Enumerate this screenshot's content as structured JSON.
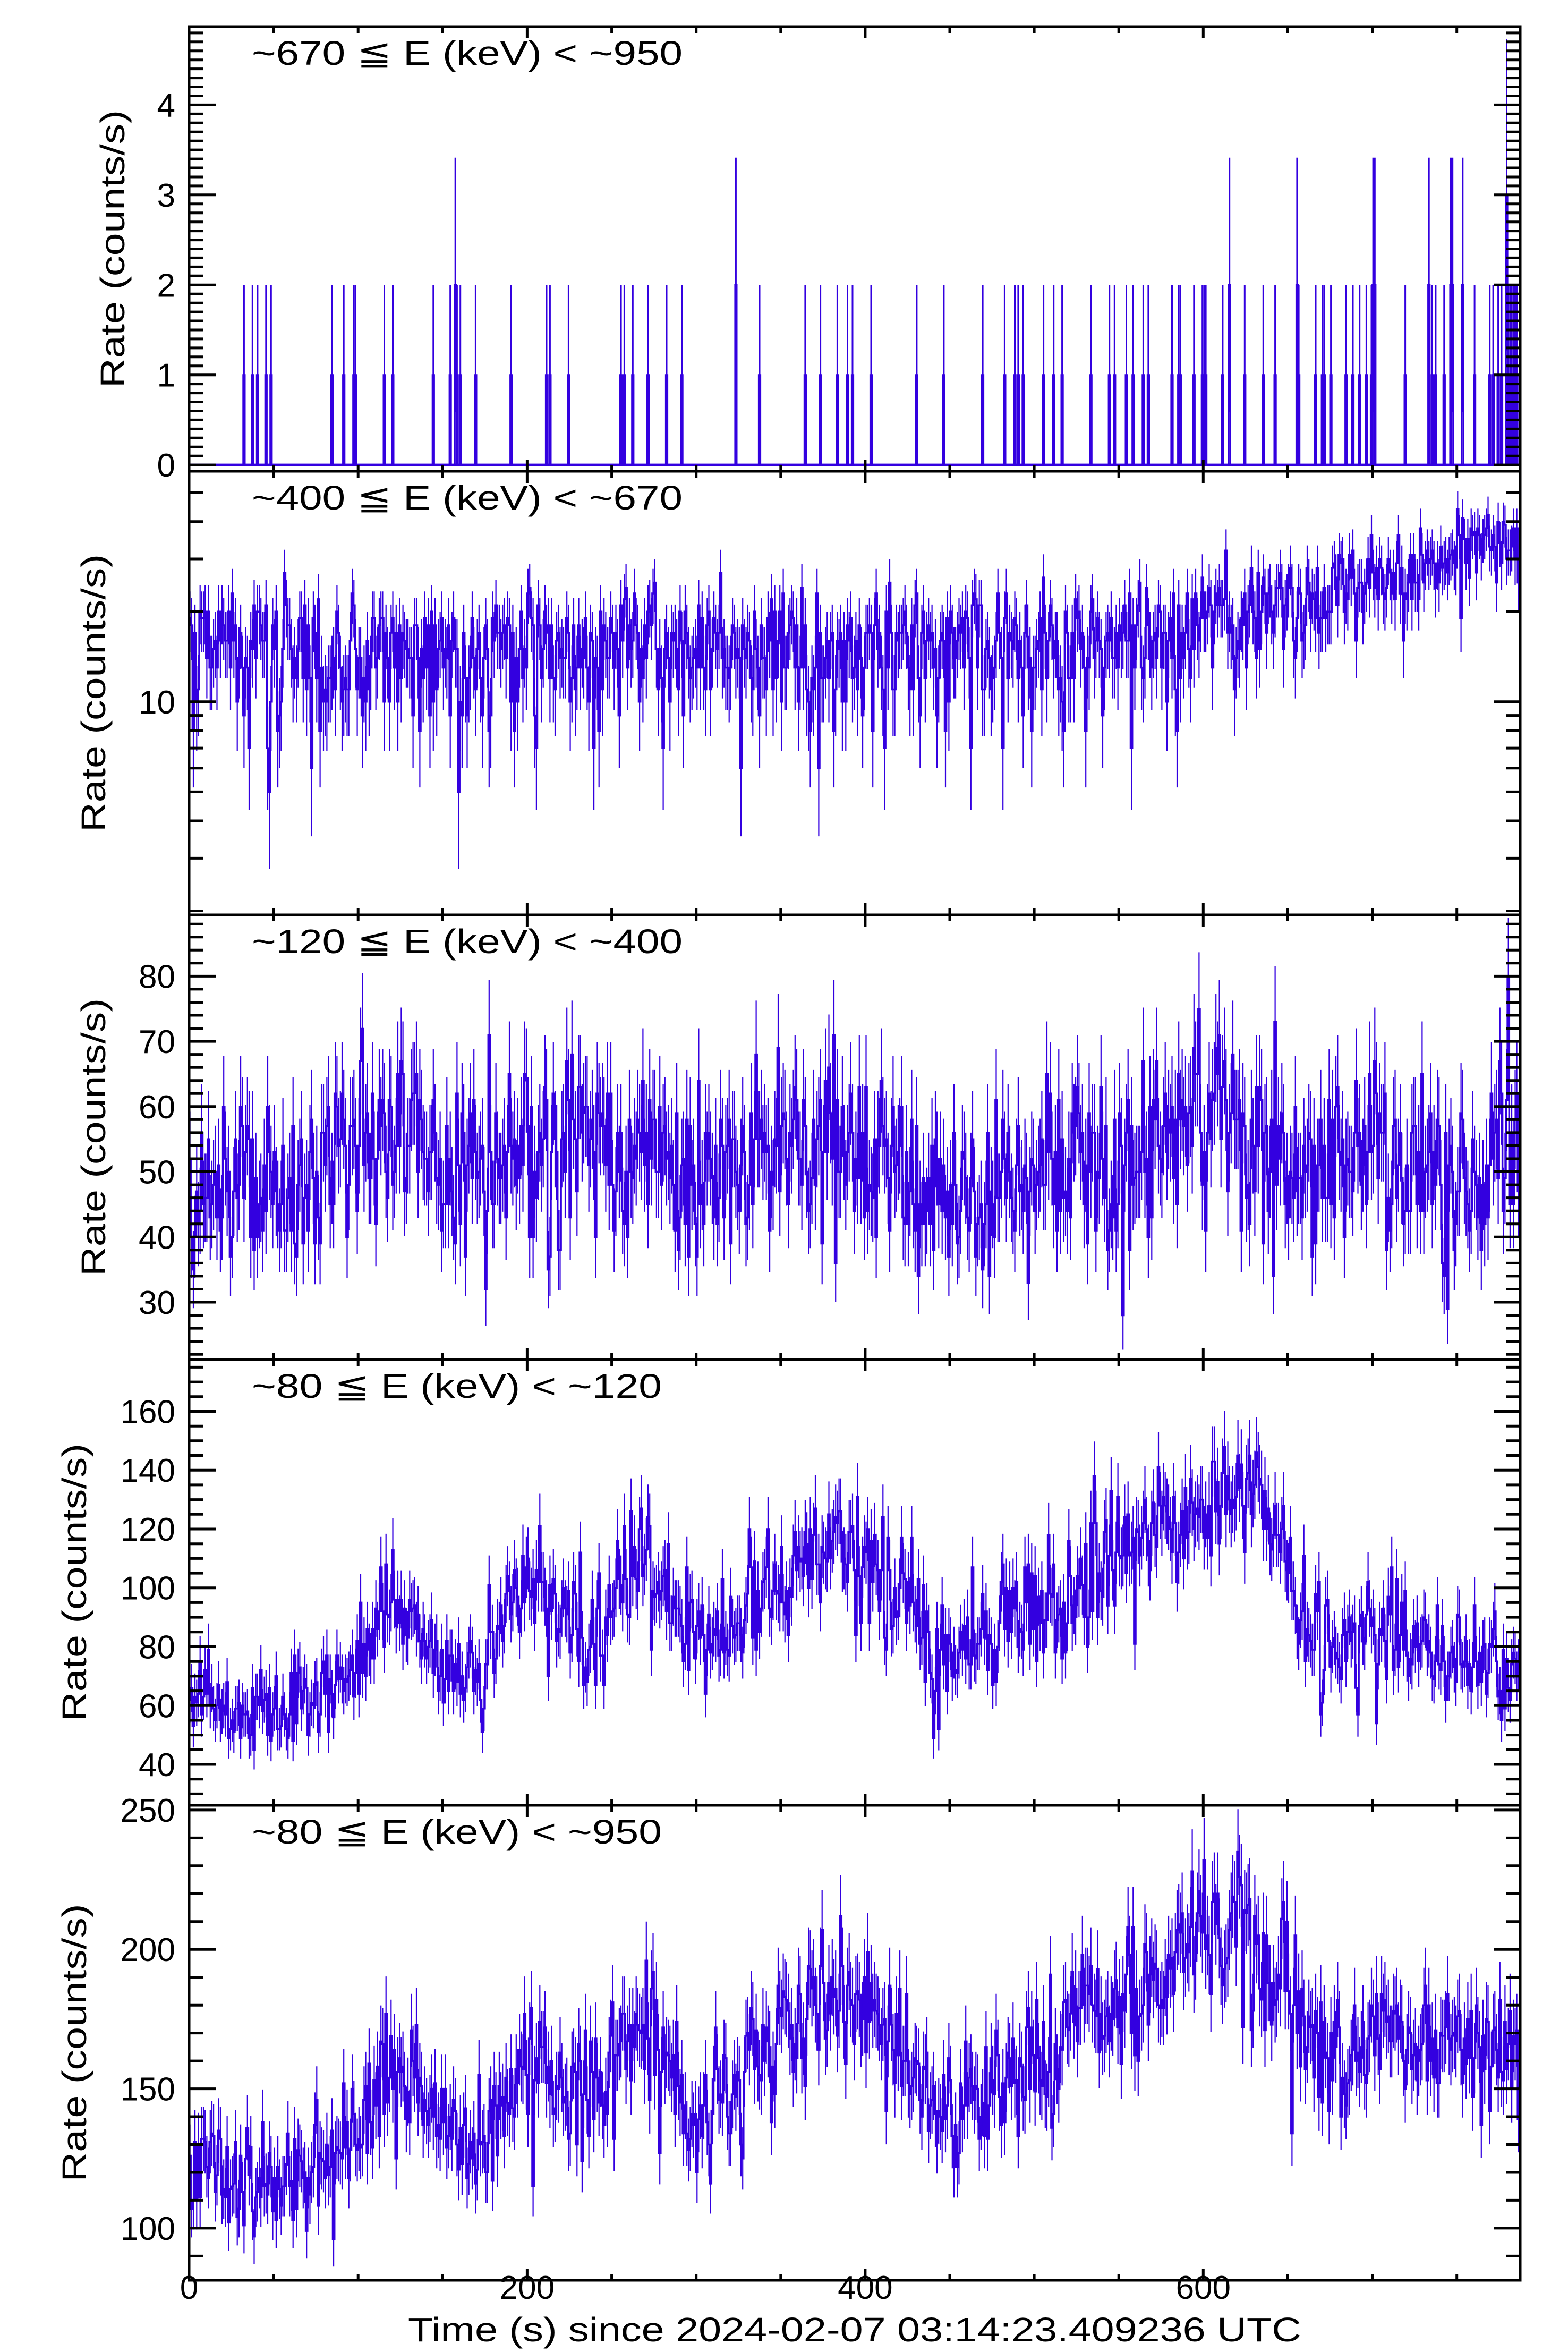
{
  "chart_data": {
    "type": "line",
    "title": "",
    "x_label": "Time (s) since 2024-02-07 03:14:23.409236 UTC",
    "xlim": [
      0,
      787.5
    ],
    "x_ticks": [
      0,
      200,
      400,
      600
    ],
    "x_tick_labels": [
      "0",
      "200",
      "400",
      "600"
    ],
    "x_minor_step": 50,
    "bin_width_s": 1,
    "line_color": "#3300e0",
    "grid": false,
    "legend": "none",
    "panels": [
      {
        "name": "670-950keV",
        "label": "~670 ≦ E (keV) < ~950",
        "ylabel": "Rate (counts/s)",
        "scale": "linear",
        "ylim": [
          -0.07,
          4.87
        ],
        "y_ticks": [
          0,
          1,
          2,
          3,
          4
        ],
        "y_tick_labels": [
          "0",
          "1",
          "2",
          "3",
          "4"
        ],
        "y_minor_step": 0.1,
        "events": {
          "t": [
            32,
            37,
            40,
            45,
            48,
            84,
            91,
            97,
            98,
            115,
            120,
            144,
            154,
            157,
            158,
            160,
            169,
            190,
            211,
            213,
            224,
            255,
            257,
            262,
            271,
            282,
            291,
            323,
            337,
            364,
            373,
            383,
            389,
            392,
            403,
            430,
            446,
            469,
            482,
            488,
            490,
            493,
            505,
            511,
            516,
            533,
            544,
            547,
            554,
            558,
            564,
            567,
            581,
            585,
            586,
            594,
            599,
            600,
            601,
            611,
            615,
            624,
            635,
            642,
            655,
            656,
            666,
            670,
            671,
            675,
            684,
            688,
            692,
            696,
            699,
            700,
            701,
            719,
            733,
            735,
            737,
            742,
            746,
            747,
            753,
            760,
            769,
            771,
            774,
            776,
            779,
            780,
            781,
            782,
            783,
            784,
            785
          ],
          "count": [
            1,
            1,
            1,
            1,
            1,
            1,
            1,
            1,
            1,
            1,
            1,
            1,
            1,
            2,
            1,
            1,
            1,
            1,
            1,
            1,
            1,
            1,
            1,
            1,
            1,
            1,
            1,
            2,
            1,
            1,
            1,
            1,
            1,
            1,
            1,
            1,
            1,
            1,
            1,
            1,
            1,
            1,
            1,
            1,
            1,
            1,
            1,
            1,
            1,
            1,
            1,
            1,
            1,
            1,
            1,
            1,
            1,
            1,
            1,
            1,
            2,
            1,
            1,
            1,
            2,
            1,
            1,
            1,
            1,
            1,
            1,
            1,
            1,
            1,
            1,
            2,
            2,
            1,
            2,
            1,
            1,
            1,
            2,
            2,
            2,
            1,
            1,
            1,
            1,
            1,
            3,
            1,
            1,
            1,
            1,
            1,
            1
          ]
        }
      },
      {
        "name": "400-670keV",
        "label": "~400 ≦ E (keV) < ~670",
        "ylabel": "Rate (counts/s)",
        "scale": "log",
        "ylim": [
          1.94,
          58.9
        ],
        "y_ticks": [
          10
        ],
        "y_tick_labels": [
          "10"
        ],
        "trend": {
          "t": [
            0,
            100,
            200,
            300,
            400,
            500,
            550,
            600,
            650,
            700,
            740,
            787
          ],
          "rate": [
            15,
            15,
            14.5,
            15,
            15,
            15,
            16,
            18,
            21,
            25,
            29,
            34
          ]
        }
      },
      {
        "name": "120-400keV",
        "label": "~120 ≦ E (keV) < ~400",
        "ylabel": "Rate (counts/s)",
        "scale": "linear",
        "ylim": [
          21.2,
          89.4
        ],
        "y_ticks": [
          30,
          40,
          50,
          60,
          70,
          80
        ],
        "y_tick_labels": [
          "30",
          "40",
          "50",
          "60",
          "70",
          "80"
        ],
        "y_minor_step": 2,
        "trend": {
          "t": [
            0,
            20,
            40,
            60,
            80,
            100,
            110,
            120,
            140,
            160,
            170,
            180,
            200,
            220,
            240,
            260,
            270,
            280,
            300,
            320,
            340,
            360,
            380,
            400,
            420,
            440,
            460,
            480,
            500,
            520,
            540,
            560,
            580,
            600,
            620,
            630,
            640,
            660,
            680,
            700,
            720,
            740,
            760,
            787
          ],
          "rate": [
            47,
            47,
            46,
            46,
            48,
            50,
            55,
            57,
            53,
            48,
            48,
            50,
            56,
            54,
            52,
            53,
            54,
            50,
            48,
            51,
            52,
            55,
            53,
            52,
            50,
            47,
            46,
            48,
            49,
            51,
            52,
            51,
            54,
            58,
            55,
            55,
            54,
            50,
            51,
            53,
            50,
            51,
            50,
            52
          ]
        }
      },
      {
        "name": "80-120keV",
        "label": "~80 ≦ E (keV) < ~120",
        "ylabel": "Rate (counts/s)",
        "scale": "linear",
        "ylim": [
          26.1,
          177.6
        ],
        "y_ticks": [
          40,
          60,
          80,
          100,
          120,
          140,
          160
        ],
        "y_tick_labels": [
          "40",
          "60",
          "80",
          "100",
          "120",
          "140",
          "160"
        ],
        "y_minor_step": 5,
        "trend": {
          "t": [
            0,
            20,
            40,
            60,
            80,
            100,
            110,
            120,
            140,
            160,
            170,
            180,
            200,
            220,
            240,
            260,
            270,
            280,
            300,
            320,
            340,
            360,
            380,
            400,
            420,
            440,
            460,
            480,
            500,
            520,
            540,
            560,
            580,
            600,
            620,
            630,
            640,
            660,
            680,
            700,
            720,
            740,
            760,
            787
          ],
          "rate": [
            60,
            58,
            57,
            60,
            64,
            72,
            88,
            96,
            85,
            70,
            68,
            82,
            105,
            90,
            82,
            105,
            115,
            100,
            76,
            88,
            100,
            112,
            115,
            106,
            100,
            76,
            78,
            88,
            92,
            100,
            110,
            112,
            122,
            126,
            128,
            132,
            122,
            90,
            82,
            82,
            80,
            78,
            76,
            72
          ]
        }
      },
      {
        "name": "80-950keV",
        "label": "~80 ≦ E (keV) < ~950",
        "ylabel": "Rate (counts/s)",
        "scale": "linear",
        "ylim": [
          81.3,
          251.7
        ],
        "y_ticks": [
          100,
          150,
          200,
          250
        ],
        "y_tick_labels": [
          "100",
          "150",
          "200",
          "250"
        ],
        "y_minor_step": 10,
        "trend": {
          "t": [
            0,
            20,
            40,
            60,
            80,
            100,
            110,
            120,
            140,
            160,
            170,
            180,
            200,
            220,
            240,
            260,
            270,
            280,
            300,
            320,
            340,
            360,
            380,
            400,
            420,
            440,
            460,
            480,
            500,
            520,
            540,
            560,
            580,
            600,
            620,
            630,
            640,
            660,
            680,
            700,
            720,
            740,
            760,
            787
          ],
          "rate": [
            122,
            120,
            118,
            121,
            124,
            132,
            148,
            158,
            145,
            130,
            128,
            140,
            165,
            155,
            150,
            165,
            175,
            162,
            140,
            150,
            163,
            175,
            180,
            178,
            170,
            145,
            145,
            155,
            160,
            172,
            180,
            182,
            198,
            203,
            205,
            208,
            198,
            172,
            165,
            168,
            165,
            165,
            168,
            165
          ]
        }
      }
    ]
  }
}
